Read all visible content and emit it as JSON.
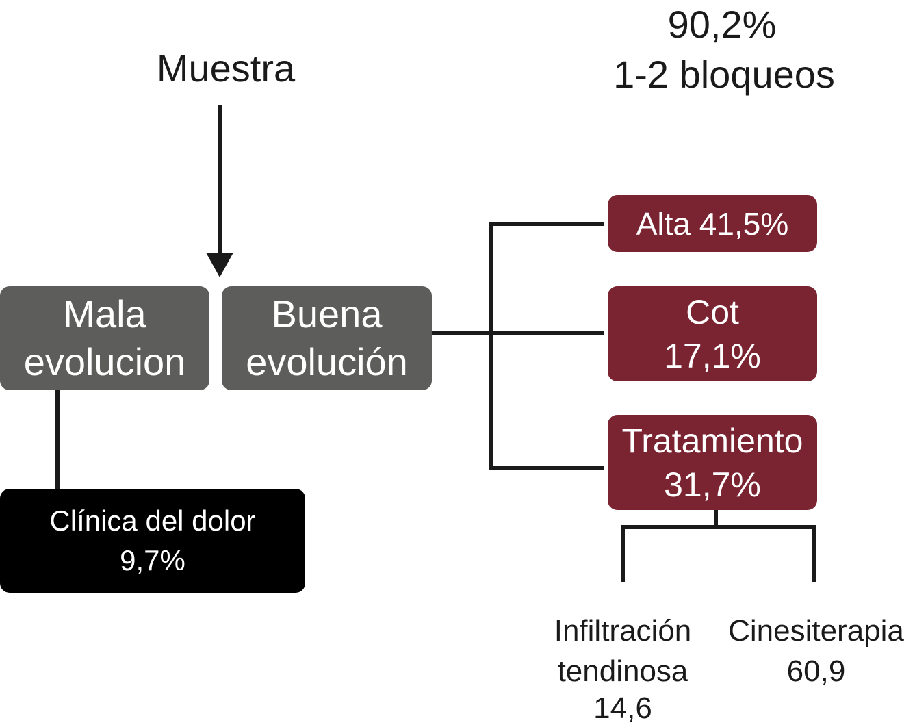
{
  "header": {
    "sample_label": "Muestra",
    "percent": "90,2%",
    "blocks_label": "1-2 bloqueos"
  },
  "outcomes": {
    "bad": {
      "line1": "Mala",
      "line2": "evolucion"
    },
    "good": {
      "line1": "Buena",
      "line2": "evolución"
    }
  },
  "pain_clinic": {
    "line1": "Clínica del dolor",
    "line2": "9,7%"
  },
  "good_branches": {
    "alta": {
      "text": "Alta 41,5%"
    },
    "cot": {
      "line1": "Cot",
      "line2": "17,1%"
    },
    "tratamiento": {
      "line1": "Tratamiento",
      "line2": "31,7%"
    }
  },
  "treatments": {
    "infiltration": {
      "line1": "Infiltración",
      "line2": "tendinosa",
      "value": "14,6"
    },
    "kinesiotherapy": {
      "line1": "Cinesiterapia",
      "value": "60,9"
    }
  },
  "colors": {
    "outcome_box": "#5d5d5b",
    "branch_box": "#7b2431",
    "clinic_box": "#000000",
    "connector": "#1a1a1a"
  }
}
